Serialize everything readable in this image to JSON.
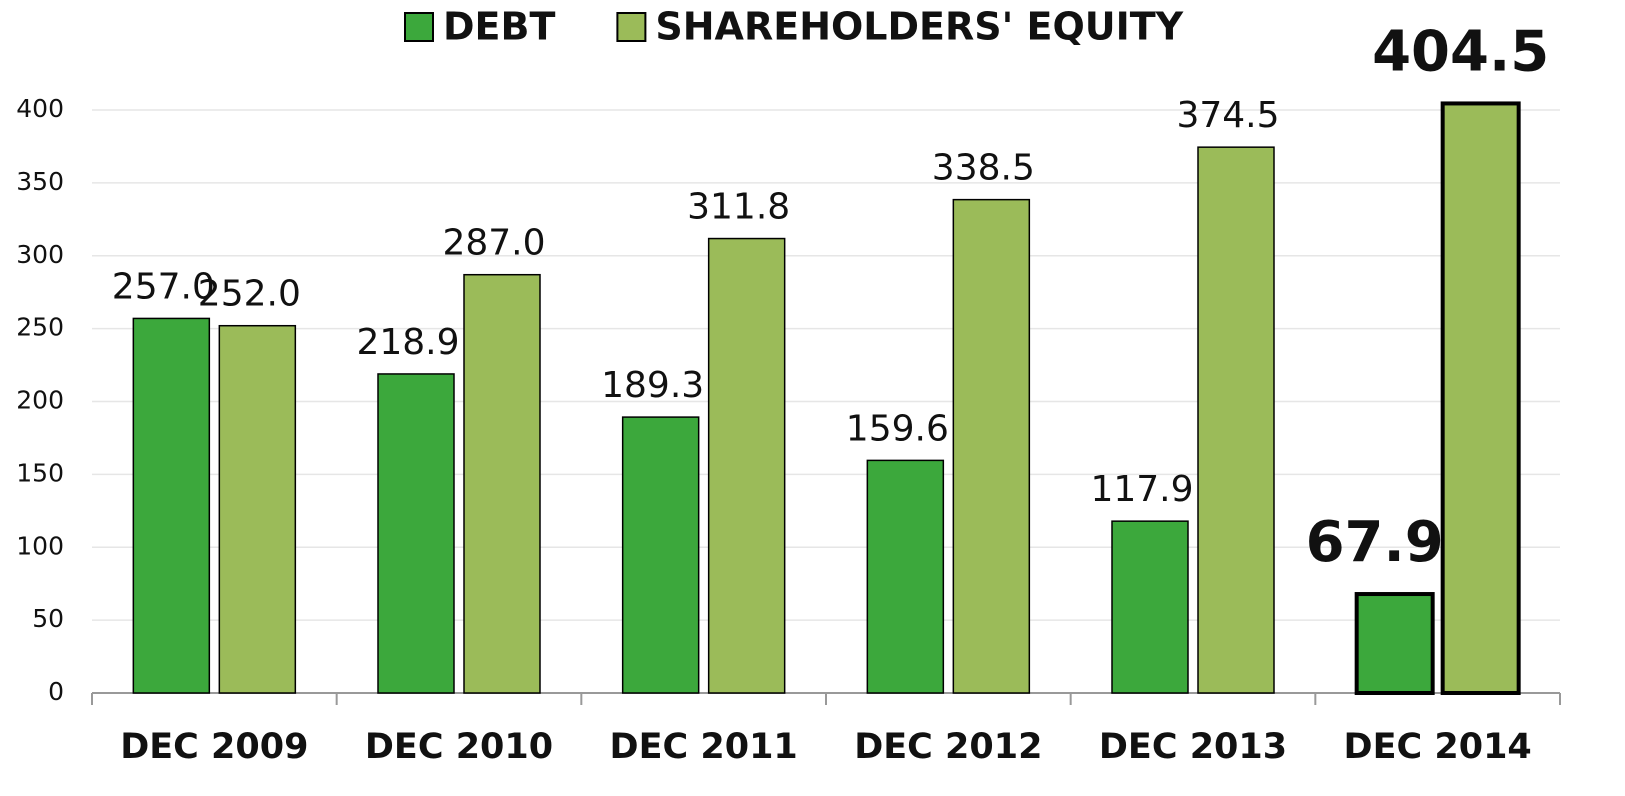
{
  "chart_data": {
    "type": "bar",
    "categories": [
      "DEC 2009",
      "DEC 2010",
      "DEC 2011",
      "DEC 2012",
      "DEC 2013",
      "DEC 2014"
    ],
    "series": [
      {
        "name": "DEBT",
        "color": "#3ca83c",
        "values": [
          257.0,
          218.9,
          189.3,
          159.6,
          117.9,
          67.9
        ],
        "value_labels": [
          "257.0",
          "218.9",
          "189.3",
          "159.6",
          "117.9",
          "67.9"
        ]
      },
      {
        "name": "SHAREHOLDERS' EQUITY",
        "color": "#9bbb59",
        "values": [
          252.0,
          287.0,
          311.8,
          338.5,
          374.5,
          404.5
        ],
        "value_labels": [
          "252.0",
          "287.0",
          "311.8",
          "338.5",
          "374.5",
          "404.5"
        ]
      }
    ],
    "ylim": [
      0,
      400
    ],
    "yticks": [
      0,
      50,
      100,
      150,
      200,
      250,
      300,
      350,
      400
    ],
    "grid": true,
    "legend": "top"
  }
}
